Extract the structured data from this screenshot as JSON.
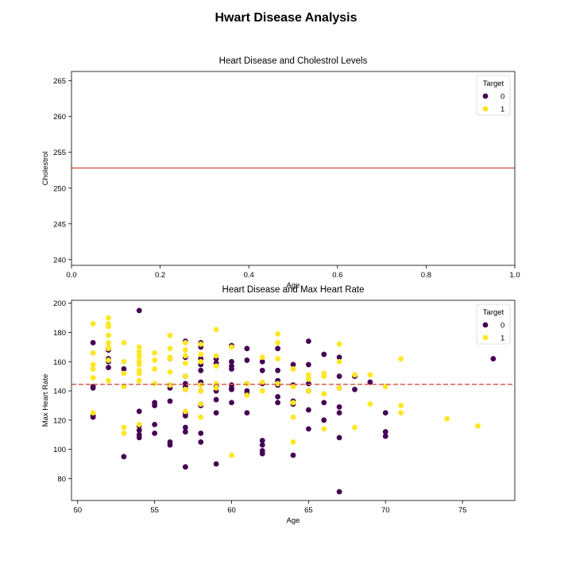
{
  "figure": {
    "suptitle": "Hwart Disease Analysis"
  },
  "colors": {
    "target_0": "#440154",
    "target_1": "#fde725",
    "mean_line": "#d9604c",
    "axes": "#000000"
  },
  "chart_data": [
    {
      "type": "scatter",
      "title": "Heart Disease and Cholestrol Levels",
      "xlabel": "Age",
      "ylabel": "Cholestrol",
      "xlim": [
        0.0,
        1.0
      ],
      "ylim": [
        239.2,
        266.3
      ],
      "xticks": [
        0.0,
        0.2,
        0.4,
        0.6,
        0.8,
        1.0
      ],
      "xtick_labels": [
        "0.0",
        "0.2",
        "0.4",
        "0.6",
        "0.8",
        "1.0"
      ],
      "yticks": [
        240,
        245,
        250,
        255,
        260,
        265
      ],
      "ytick_labels": [
        "240",
        "245",
        "250",
        "255",
        "260",
        "265"
      ],
      "grid": false,
      "legend": {
        "title": "Target",
        "position": "top-right",
        "entries": [
          "0",
          "1"
        ]
      },
      "hline": {
        "y": 252.8,
        "style": "solid"
      },
      "series": []
    },
    {
      "type": "scatter",
      "title": "Heart Disease and Max Heart Rate",
      "xlabel": "Age",
      "ylabel": "Max Heart Rate",
      "xlim": [
        49.6,
        78.4
      ],
      "ylim": [
        65,
        202
      ],
      "xticks": [
        50,
        55,
        60,
        65,
        70,
        75
      ],
      "xtick_labels": [
        "50",
        "55",
        "60",
        "65",
        "70",
        "75"
      ],
      "yticks": [
        80,
        100,
        120,
        140,
        160,
        180,
        200
      ],
      "ytick_labels": [
        "80",
        "100",
        "120",
        "140",
        "160",
        "180",
        "200"
      ],
      "grid": false,
      "legend": {
        "title": "Target",
        "position": "top-right",
        "entries": [
          "0",
          "1"
        ]
      },
      "hline": {
        "y": 144.5,
        "style": "dashed"
      },
      "series": [
        {
          "name": "0",
          "points": [
            [
              51,
              173
            ],
            [
              51,
              143
            ],
            [
              51,
              142
            ],
            [
              51,
              123
            ],
            [
              51,
              122
            ],
            [
              52,
              169
            ],
            [
              52,
              168
            ],
            [
              52,
              162
            ],
            [
              52,
              160
            ],
            [
              52,
              156
            ],
            [
              53,
              155
            ],
            [
              53,
              95
            ],
            [
              54,
              195
            ],
            [
              54,
              126
            ],
            [
              54,
              116
            ],
            [
              54,
              113
            ],
            [
              54,
              110
            ],
            [
              54,
              108
            ],
            [
              55,
              132
            ],
            [
              55,
              130
            ],
            [
              55,
              117
            ],
            [
              55,
              111
            ],
            [
              56,
              162
            ],
            [
              56,
              144
            ],
            [
              56,
              142
            ],
            [
              56,
              133
            ],
            [
              56,
              105
            ],
            [
              56,
              103
            ],
            [
              57,
              174
            ],
            [
              57,
              163
            ],
            [
              57,
              150
            ],
            [
              57,
              145
            ],
            [
              57,
              143
            ],
            [
              57,
              141
            ],
            [
              57,
              125
            ],
            [
              57,
              123
            ],
            [
              57,
              115
            ],
            [
              57,
              112
            ],
            [
              57,
              88
            ],
            [
              58,
              173
            ],
            [
              58,
              170
            ],
            [
              58,
              162
            ],
            [
              58,
              158
            ],
            [
              58,
              154
            ],
            [
              58,
              146
            ],
            [
              58,
              140
            ],
            [
              58,
              131
            ],
            [
              58,
              130
            ],
            [
              58,
              111
            ],
            [
              58,
              105
            ],
            [
              59,
              162
            ],
            [
              59,
              159
            ],
            [
              59,
              143
            ],
            [
              59,
              142
            ],
            [
              59,
              140
            ],
            [
              59,
              134
            ],
            [
              59,
              125
            ],
            [
              59,
              90
            ],
            [
              60,
              171
            ],
            [
              60,
              160
            ],
            [
              60,
              157
            ],
            [
              60,
              155
            ],
            [
              60,
              144
            ],
            [
              60,
              142
            ],
            [
              60,
              141
            ],
            [
              60,
              132
            ],
            [
              61,
              169
            ],
            [
              61,
              161
            ],
            [
              61,
              145
            ],
            [
              61,
              140
            ],
            [
              61,
              138
            ],
            [
              61,
              125
            ],
            [
              62,
              160
            ],
            [
              62,
              154
            ],
            [
              62,
              145
            ],
            [
              62,
              106
            ],
            [
              62,
              103
            ],
            [
              62,
              99
            ],
            [
              62,
              97
            ],
            [
              63,
              169
            ],
            [
              63,
              154
            ],
            [
              63,
              147
            ],
            [
              63,
              144
            ],
            [
              63,
              136
            ],
            [
              63,
              132
            ],
            [
              64,
              158
            ],
            [
              64,
              144
            ],
            [
              64,
              133
            ],
            [
              64,
              131
            ],
            [
              64,
              96
            ],
            [
              65,
              174
            ],
            [
              65,
              158
            ],
            [
              65,
              145
            ],
            [
              65,
              140
            ],
            [
              65,
              127
            ],
            [
              65,
              114
            ],
            [
              66,
              165
            ],
            [
              66,
              132
            ],
            [
              66,
              120
            ],
            [
              67,
              163
            ],
            [
              67,
              150
            ],
            [
              67,
              142
            ],
            [
              67,
              129
            ],
            [
              67,
              125
            ],
            [
              67,
              108
            ],
            [
              67,
              71
            ],
            [
              68,
              150
            ],
            [
              68,
              141
            ],
            [
              69,
              146
            ],
            [
              70,
              125
            ],
            [
              70,
              112
            ],
            [
              70,
              109
            ],
            [
              77,
              162
            ]
          ]
        },
        {
          "name": "1",
          "points": [
            [
              51,
              186
            ],
            [
              51,
              166
            ],
            [
              51,
              158
            ],
            [
              51,
              155
            ],
            [
              51,
              149
            ],
            [
              51,
              125
            ],
            [
              52,
              190
            ],
            [
              52,
              186
            ],
            [
              52,
              184
            ],
            [
              52,
              178
            ],
            [
              52,
              173
            ],
            [
              52,
              170
            ],
            [
              52,
              169
            ],
            [
              52,
              161
            ],
            [
              52,
              147
            ],
            [
              53,
              173
            ],
            [
              53,
              160
            ],
            [
              53,
              152
            ],
            [
              53,
              143
            ],
            [
              53,
              115
            ],
            [
              53,
              111
            ],
            [
              54,
              170
            ],
            [
              54,
              167
            ],
            [
              54,
              165
            ],
            [
              54,
              163
            ],
            [
              54,
              160
            ],
            [
              54,
              158
            ],
            [
              54,
              154
            ],
            [
              54,
              152
            ],
            [
              54,
              147
            ],
            [
              54,
              117
            ],
            [
              55,
              166
            ],
            [
              55,
              161
            ],
            [
              55,
              155
            ],
            [
              55,
              145
            ],
            [
              56,
              178
            ],
            [
              56,
              169
            ],
            [
              56,
              163
            ],
            [
              56,
              162
            ],
            [
              56,
              153
            ],
            [
              56,
              144
            ],
            [
              57,
              173
            ],
            [
              57,
              168
            ],
            [
              57,
              164
            ],
            [
              57,
              159
            ],
            [
              57,
              150
            ],
            [
              57,
              141
            ],
            [
              57,
              126
            ],
            [
              58,
              172
            ],
            [
              58,
              165
            ],
            [
              58,
              160
            ],
            [
              58,
              144
            ],
            [
              58,
              140
            ],
            [
              58,
              131
            ],
            [
              58,
              122
            ],
            [
              59,
              182
            ],
            [
              59,
              164
            ],
            [
              59,
              157
            ],
            [
              59,
              145
            ],
            [
              59,
              142
            ],
            [
              60,
              170
            ],
            [
              60,
              96
            ],
            [
              61,
              145
            ],
            [
              61,
              137
            ],
            [
              62,
              163
            ],
            [
              62,
              146
            ],
            [
              62,
              140
            ],
            [
              63,
              179
            ],
            [
              63,
              173
            ],
            [
              63,
              162
            ],
            [
              63,
              145
            ],
            [
              64,
              155
            ],
            [
              64,
              143
            ],
            [
              64,
              132
            ],
            [
              64,
              122
            ],
            [
              64,
              105
            ],
            [
              65,
              151
            ],
            [
              65,
              148
            ],
            [
              65,
              140
            ],
            [
              66,
              152
            ],
            [
              66,
              150
            ],
            [
              66,
              138
            ],
            [
              66,
              114
            ],
            [
              67,
              172
            ],
            [
              67,
              160
            ],
            [
              67,
              142
            ],
            [
              68,
              151
            ],
            [
              68,
              115
            ],
            [
              69,
              151
            ],
            [
              69,
              131
            ],
            [
              70,
              143
            ],
            [
              71,
              162
            ],
            [
              71,
              130
            ],
            [
              71,
              125
            ],
            [
              74,
              121
            ],
            [
              76,
              116
            ]
          ]
        }
      ]
    }
  ]
}
